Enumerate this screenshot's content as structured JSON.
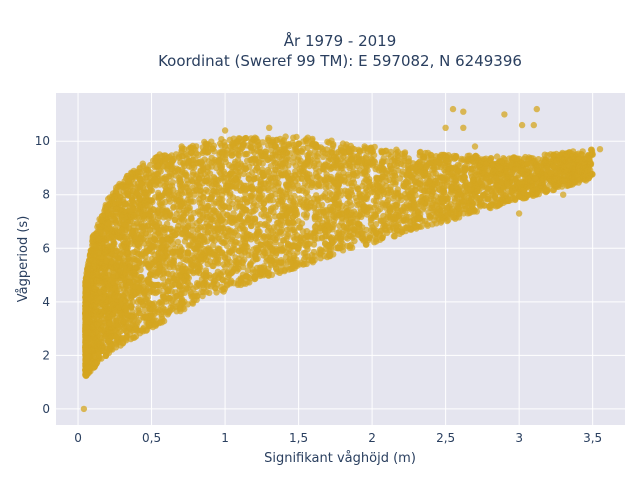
{
  "chart_data": {
    "type": "scatter",
    "title": "År 1979 - 2019",
    "subtitle": "Koordinat (Sweref 99 TM): E 597082, N 6249396",
    "xlabel": "Signifikant våghöjd (m)",
    "ylabel": "Vågperiod (s)",
    "xlim": [
      -0.15,
      3.72
    ],
    "ylim": [
      -0.6,
      11.8
    ],
    "x_ticks": [
      0,
      0.5,
      1,
      1.5,
      2,
      2.5,
      3,
      3.5
    ],
    "x_tick_labels": [
      "0",
      "0,5",
      "1",
      "1,5",
      "2",
      "2,5",
      "3",
      "3,5"
    ],
    "y_ticks": [
      0,
      2,
      4,
      6,
      8,
      10
    ],
    "y_tick_labels": [
      "0",
      "2",
      "4",
      "6",
      "8",
      "10"
    ],
    "grid": true,
    "plot_background": "#e5e5ef",
    "marker_color": "#d4a520",
    "envelope": {
      "x": [
        0.05,
        0.1,
        0.2,
        0.3,
        0.5,
        0.75,
        1.0,
        1.5,
        2.0,
        2.5,
        3.0,
        3.5
      ],
      "y_lower": [
        1.2,
        1.5,
        2.0,
        2.4,
        3.0,
        3.8,
        4.4,
        5.3,
        6.2,
        7.0,
        7.8,
        8.6
      ],
      "y_upper": [
        4.8,
        6.5,
        7.8,
        8.6,
        9.4,
        9.9,
        10.1,
        10.2,
        9.8,
        9.5,
        9.4,
        9.7
      ]
    },
    "outliers": [
      [
        0.04,
        0.0
      ],
      [
        0.06,
        4.7
      ],
      [
        2.55,
        11.2
      ],
      [
        2.62,
        11.1
      ],
      [
        2.9,
        11.0
      ],
      [
        3.12,
        11.2
      ],
      [
        3.1,
        10.6
      ],
      [
        3.02,
        10.6
      ],
      [
        2.5,
        10.5
      ],
      [
        2.62,
        10.5
      ],
      [
        2.85,
        7.7
      ],
      [
        3.0,
        7.3
      ],
      [
        3.3,
        8.0
      ],
      [
        3.5,
        9.5
      ],
      [
        3.55,
        9.7
      ],
      [
        3.45,
        9.0
      ],
      [
        3.38,
        8.7
      ],
      [
        2.8,
        9.3
      ],
      [
        2.7,
        9.8
      ],
      [
        1.0,
        10.4
      ],
      [
        1.3,
        10.5
      ]
    ]
  }
}
